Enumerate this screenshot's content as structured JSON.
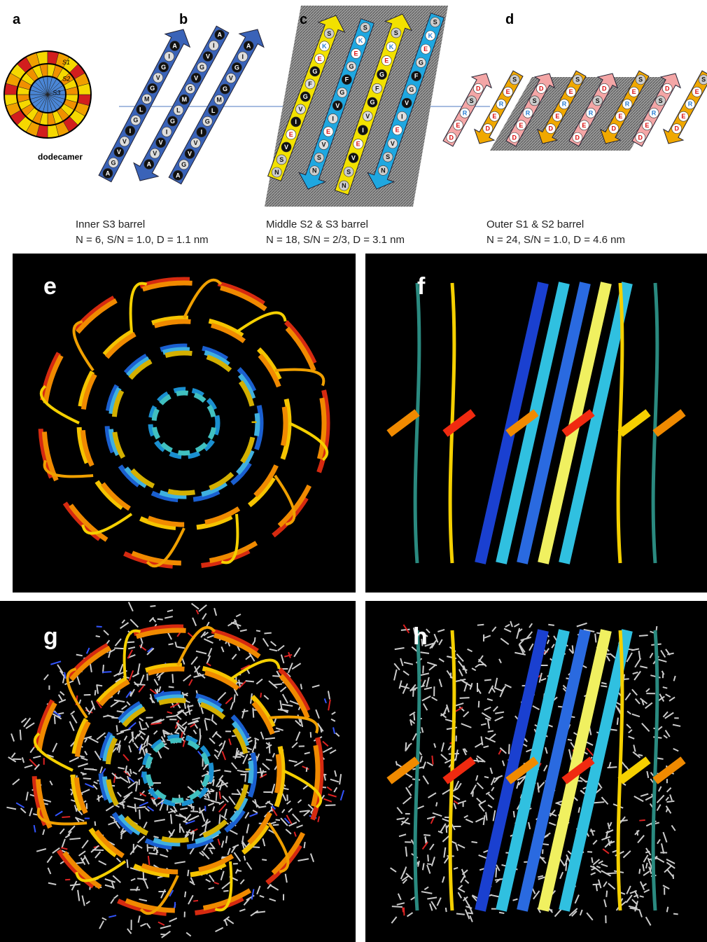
{
  "panels": {
    "a": {
      "label": "a",
      "caption": "dodecamer",
      "rings": [
        "S1",
        "S2",
        "S3"
      ]
    },
    "b": {
      "label": "b",
      "strands": [
        [
          "A",
          "G",
          "V",
          "V",
          "I",
          "G",
          "L",
          "M",
          "G",
          "V",
          "G",
          "I",
          "A"
        ],
        [
          "A",
          "I",
          "V",
          "G",
          "V",
          "G",
          "M",
          "L",
          "G",
          "I",
          "V",
          "V",
          "A"
        ],
        [
          "A",
          "G",
          "V",
          "V",
          "I",
          "G",
          "L",
          "M",
          "G",
          "V",
          "G",
          "I",
          "A"
        ]
      ]
    },
    "c": {
      "label": "c",
      "strands": [
        [
          "N",
          "S",
          "V",
          "E",
          "I",
          "V",
          "G",
          "F",
          "G",
          "E",
          "K",
          "S"
        ],
        [
          "S",
          "K",
          "E",
          "G",
          "F",
          "G",
          "V",
          "I",
          "E",
          "V",
          "S",
          "N"
        ],
        [
          "N",
          "S",
          "V",
          "E",
          "I",
          "V",
          "G",
          "F",
          "G",
          "E",
          "K",
          "S"
        ],
        [
          "S",
          "K",
          "E",
          "G",
          "F",
          "G",
          "V",
          "I",
          "E",
          "V",
          "S",
          "N"
        ]
      ]
    },
    "d": {
      "label": "d",
      "strands": [
        [
          "D",
          "E",
          "R",
          "S",
          "D"
        ],
        [
          "S",
          "E",
          "R",
          "E",
          "D"
        ],
        [
          "D",
          "E",
          "R",
          "S",
          "D"
        ],
        [
          "S",
          "E",
          "R",
          "E",
          "D"
        ],
        [
          "D",
          "E",
          "R",
          "S",
          "D"
        ],
        [
          "S",
          "E",
          "R",
          "E",
          "D"
        ],
        [
          "D",
          "E",
          "R",
          "S",
          "D"
        ],
        [
          "S",
          "E",
          "R",
          "E",
          "D"
        ]
      ]
    },
    "e": {
      "label": "e"
    },
    "f": {
      "label": "f"
    },
    "g": {
      "label": "g"
    },
    "h": {
      "label": "h"
    }
  },
  "barrels": [
    {
      "name": "Inner S3 barrel",
      "params": "N = 6, S/N = 1.0, D = 1.1 nm"
    },
    {
      "name": "Middle S2 & S3 barrel",
      "params": "N = 18, S/N = 2/3, D = 3.1 nm"
    },
    {
      "name": "Outer S1 & S2 barrel",
      "params": "N = 24, S/N = 1.0, D = 4.6 nm"
    }
  ]
}
